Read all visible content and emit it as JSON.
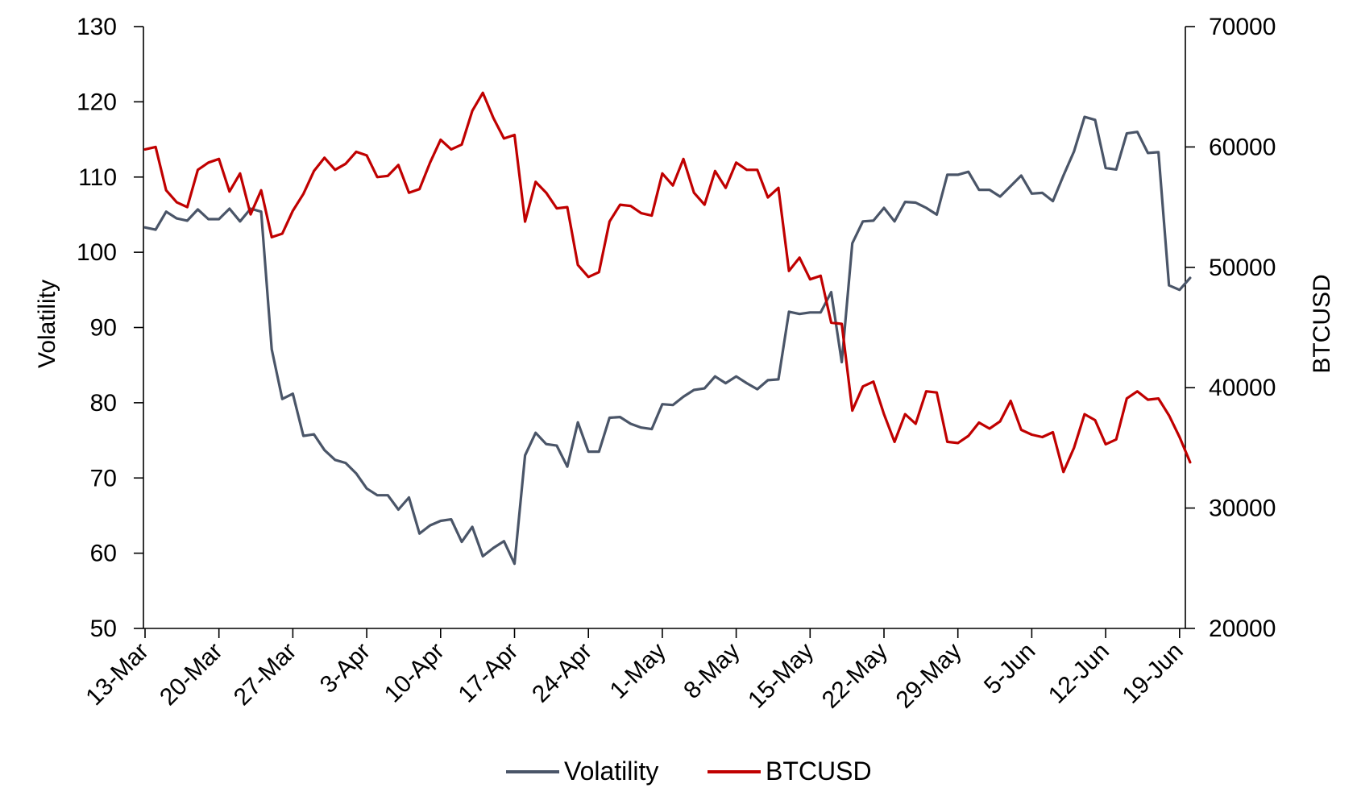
{
  "chart_data": {
    "type": "line",
    "y_left": {
      "label": "Volatility",
      "lim": [
        50,
        130
      ],
      "ticks": [
        "50",
        "60",
        "70",
        "80",
        "90",
        "100",
        "110",
        "120",
        "130"
      ]
    },
    "y_right": {
      "label": "BTCUSD",
      "lim": [
        20000,
        70000
      ],
      "ticks": [
        "20000",
        "30000",
        "40000",
        "50000",
        "60000",
        "70000"
      ]
    },
    "x_ticks": [
      "13-Mar",
      "20-Mar",
      "27-Mar",
      "3-Apr",
      "10-Apr",
      "17-Apr",
      "24-Apr",
      "1-May",
      "8-May",
      "15-May",
      "22-May",
      "29-May",
      "5-Jun",
      "12-Jun",
      "19-Jun"
    ],
    "x_start": "2021-03-13",
    "legend": {
      "position": "bottom",
      "entries": [
        "Volatility",
        "BTCUSD"
      ]
    },
    "series": [
      {
        "name": "Volatility",
        "axis": "left",
        "color": "#4a5568",
        "values": [
          103.3,
          103.0,
          105.4,
          104.5,
          104.2,
          105.7,
          104.4,
          104.4,
          105.8,
          104.1,
          105.8,
          105.4,
          87.1,
          80.5,
          81.2,
          75.6,
          75.8,
          73.7,
          72.4,
          72.0,
          70.6,
          68.6,
          67.7,
          67.7,
          65.8,
          67.4,
          62.6,
          63.7,
          64.3,
          64.5,
          61.5,
          63.5,
          59.6,
          60.7,
          61.6,
          58.6,
          73.0,
          76.0,
          74.5,
          74.3,
          71.5,
          77.4,
          73.5,
          73.5,
          78.0,
          78.1,
          77.2,
          76.7,
          76.5,
          79.8,
          79.7,
          80.8,
          81.7,
          81.9,
          83.5,
          82.6,
          83.5,
          82.6,
          81.8,
          83.0,
          83.1,
          92.1,
          91.8,
          92.0,
          92.0,
          94.7,
          85.4,
          101.2,
          104.1,
          104.2,
          105.9,
          104.1,
          106.7,
          106.6,
          105.9,
          105.0,
          110.3,
          110.3,
          110.7,
          108.3,
          108.3,
          107.4,
          108.8,
          110.2,
          107.8,
          107.9,
          106.8,
          110.2,
          113.4,
          118.0,
          117.6,
          111.2,
          111.0,
          115.8,
          116.0,
          113.2,
          113.3,
          95.6,
          95.0,
          96.6
        ]
      },
      {
        "name": "BTCUSD",
        "axis": "right",
        "color": "#c00000",
        "values": [
          59800,
          60000,
          56400,
          55400,
          55000,
          58100,
          58700,
          59000,
          56300,
          57800,
          54400,
          56400,
          52500,
          52800,
          54700,
          56100,
          58000,
          59100,
          58100,
          58600,
          59600,
          59300,
          57500,
          57600,
          58500,
          56200,
          56500,
          58700,
          60600,
          59800,
          60200,
          63000,
          64500,
          62400,
          60700,
          61000,
          53800,
          57100,
          56200,
          54900,
          55000,
          50200,
          49200,
          49600,
          53800,
          55200,
          55100,
          54500,
          54300,
          57800,
          56800,
          59000,
          56200,
          55200,
          58000,
          56600,
          58700,
          58100,
          58100,
          55800,
          56600,
          49700,
          50800,
          49000,
          49300,
          45400,
          45300,
          38100,
          40100,
          40500,
          37800,
          35500,
          37800,
          37000,
          39700,
          39600,
          35500,
          35400,
          36000,
          37100,
          36600,
          37200,
          38900,
          36500,
          36100,
          35900,
          36300,
          33000,
          35000,
          37800,
          37300,
          35300,
          35700,
          39100,
          39700,
          39000,
          39100,
          37700,
          35900,
          33800
        ]
      }
    ]
  }
}
